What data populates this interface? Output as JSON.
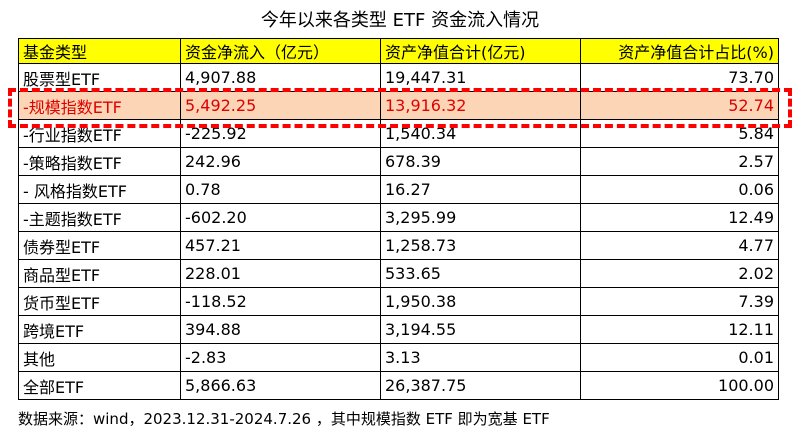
{
  "title": "今年以来各类型 ETF 资金流入情况",
  "table": {
    "header": [
      "基金类型",
      "资金净流入（亿元）",
      "资产净值合计(亿元)",
      "资产净值合计占比(%)"
    ],
    "rows": [
      [
        "股票型ETF",
        "4,907.88",
        "19,447.31",
        "73.70"
      ],
      [
        "-规模指数ETF",
        "5,492.25",
        "13,916.32",
        "52.74"
      ],
      [
        "-行业指数ETF",
        "-225.92",
        "1,540.34",
        "5.84"
      ],
      [
        "-策略指数ETF",
        "242.96",
        "678.39",
        "2.57"
      ],
      [
        "- 风格指数ETF",
        "0.78",
        "16.27",
        "0.06"
      ],
      [
        "-主题指数ETF",
        "-602.20",
        "3,295.99",
        "12.49"
      ],
      [
        "债券型ETF",
        "457.21",
        "1,258.73",
        "4.77"
      ],
      [
        "商品型ETF",
        "228.01",
        "533.65",
        "2.02"
      ],
      [
        "货币型ETF",
        "-118.52",
        "1,950.38",
        "7.39"
      ],
      [
        "跨境ETF",
        "394.88",
        "3,194.55",
        "12.11"
      ],
      [
        "其他",
        "-2.83",
        "3.13",
        "0.01"
      ],
      [
        "全部ETF",
        "5,866.63",
        "26,387.75",
        "100.00"
      ]
    ],
    "highlight_row": 1
  },
  "note": "数据来源：wind，2023.12.31-2024.7.26 ，其中规模指数 ETF 即为宽基 ETF"
}
